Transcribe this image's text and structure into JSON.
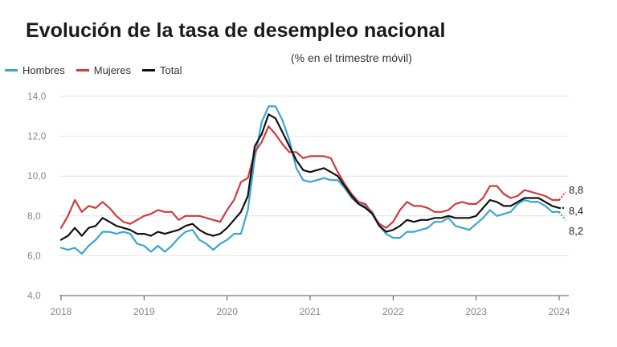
{
  "header": {
    "title": "Evolución de la tasa de desempleo nacional",
    "subtitle": "(% en el trimestre móvil)"
  },
  "chart_data": {
    "type": "line",
    "title": "Evolución de la tasa de desempleo nacional",
    "subtitle": "(% en el trimestre móvil)",
    "xlabel": "",
    "ylabel": "",
    "ylim": [
      4.0,
      14.0
    ],
    "yticks": [
      "4,0",
      "6,0",
      "8,0",
      "10,0",
      "12,0",
      "14,0"
    ],
    "ytick_values": [
      4,
      6,
      8,
      10,
      12,
      14
    ],
    "xlim": [
      2018.0,
      2024.15
    ],
    "xticks": [
      "2018",
      "2019",
      "2020",
      "2021",
      "2022",
      "2023",
      "2024"
    ],
    "xtick_values": [
      2018,
      2019,
      2020,
      2021,
      2022,
      2023,
      2024
    ],
    "grid": true,
    "legend_position": "top-left",
    "series": [
      {
        "name": "Hombres",
        "color": "#3aa6cf",
        "end_label": "8,2",
        "values": [
          6.4,
          6.3,
          6.4,
          6.1,
          6.5,
          6.8,
          7.2,
          7.2,
          7.1,
          7.2,
          7.1,
          6.6,
          6.5,
          6.2,
          6.5,
          6.2,
          6.5,
          6.9,
          7.2,
          7.3,
          6.8,
          6.6,
          6.3,
          6.6,
          6.8,
          7.1,
          7.1,
          8.3,
          10.9,
          12.7,
          13.5,
          13.5,
          12.8,
          11.8,
          10.4,
          9.8,
          9.7,
          9.8,
          9.9,
          9.8,
          9.8,
          9.4,
          8.9,
          8.6,
          8.5,
          8.2,
          7.5,
          7.1,
          6.9,
          6.9,
          7.2,
          7.2,
          7.3,
          7.4,
          7.7,
          7.7,
          7.9,
          7.5,
          7.4,
          7.3,
          7.6,
          7.9,
          8.3,
          8.0,
          8.1,
          8.2,
          8.6,
          8.8,
          8.7,
          8.7,
          8.5,
          8.2,
          8.2
        ]
      },
      {
        "name": "Mujeres",
        "color": "#d13b3b",
        "end_label": "8,8",
        "values": [
          7.4,
          8.0,
          8.8,
          8.2,
          8.5,
          8.4,
          8.7,
          8.4,
          8.0,
          7.7,
          7.6,
          7.8,
          8.0,
          8.1,
          8.3,
          8.2,
          8.2,
          7.8,
          8.0,
          8.0,
          8.0,
          7.9,
          7.8,
          7.7,
          8.3,
          8.8,
          9.7,
          9.9,
          11.2,
          11.7,
          12.5,
          12.1,
          11.6,
          11.2,
          11.2,
          10.9,
          11.0,
          11.0,
          11.0,
          10.9,
          10.2,
          9.6,
          9.1,
          8.7,
          8.6,
          8.1,
          7.6,
          7.4,
          7.7,
          8.3,
          8.7,
          8.5,
          8.5,
          8.4,
          8.2,
          8.2,
          8.3,
          8.6,
          8.7,
          8.6,
          8.6,
          8.9,
          9.5,
          9.5,
          9.1,
          8.9,
          9.0,
          9.3,
          9.2,
          9.1,
          9.0,
          8.8,
          8.8
        ]
      },
      {
        "name": "Total",
        "color": "#111111",
        "end_label": "8,4",
        "values": [
          6.8,
          7.0,
          7.4,
          7.0,
          7.4,
          7.5,
          7.9,
          7.7,
          7.5,
          7.4,
          7.3,
          7.1,
          7.1,
          7.0,
          7.2,
          7.1,
          7.2,
          7.3,
          7.5,
          7.6,
          7.3,
          7.1,
          7.0,
          7.1,
          7.4,
          7.8,
          8.2,
          9.0,
          11.5,
          12.1,
          13.1,
          12.9,
          12.2,
          11.5,
          10.8,
          10.3,
          10.2,
          10.3,
          10.4,
          10.2,
          10.0,
          9.5,
          9.0,
          8.6,
          8.4,
          8.1,
          7.5,
          7.2,
          7.3,
          7.5,
          7.8,
          7.7,
          7.8,
          7.8,
          7.9,
          7.9,
          8.0,
          7.9,
          7.9,
          7.9,
          8.0,
          8.4,
          8.8,
          8.7,
          8.5,
          8.5,
          8.7,
          8.9,
          8.9,
          8.9,
          8.7,
          8.5,
          8.4
        ]
      }
    ]
  }
}
